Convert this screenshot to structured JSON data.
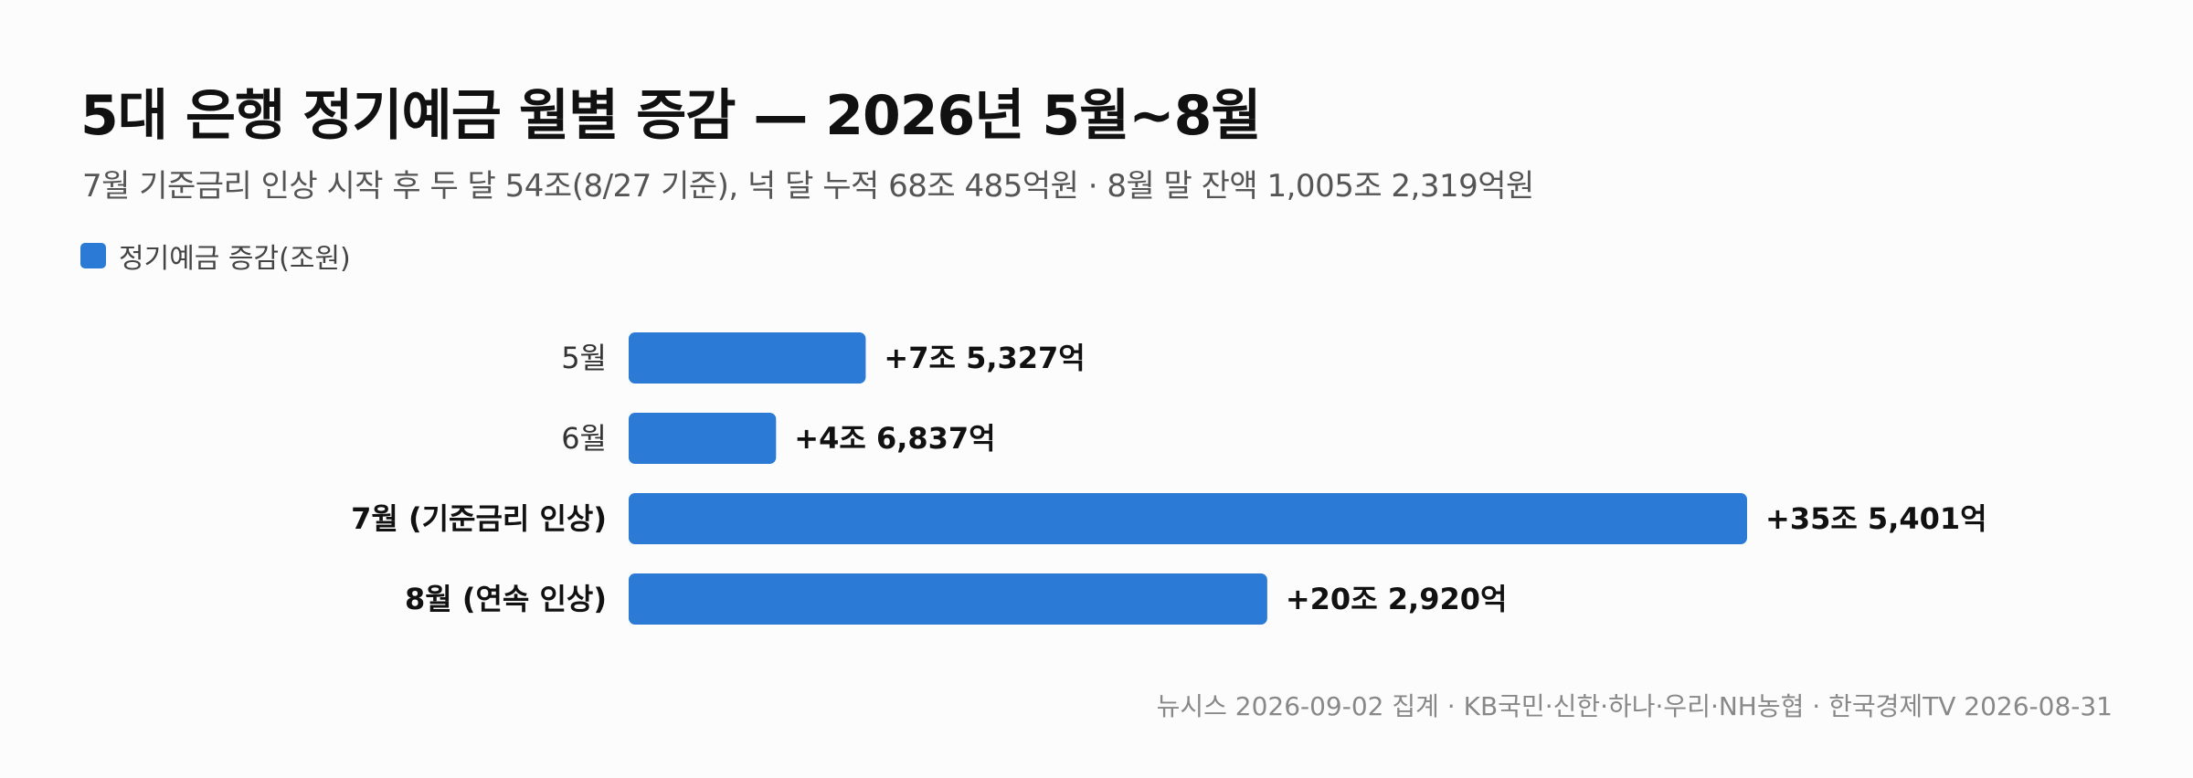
{
  "header": {
    "title": "5대 은행 정기예금 월별 증감 — 2026년 5월~8월",
    "subtitle": "7월 기준금리 인상 시작 후 두 달 54조(8/27 기준), 넉 달 누적 68조 485억원 · 8월 말 잔액 1,005조 2,319억원"
  },
  "legend": {
    "label": "정기예금 증감(조원)",
    "position": "top-left"
  },
  "colors": {
    "bar": "#2b7ad6",
    "category_label": "#333333",
    "category_label_emphasis": "#111111",
    "value_label": "#111111"
  },
  "chart_data": {
    "type": "bar",
    "orientation": "horizontal",
    "categories": [
      "5월",
      "6월",
      "7월 (기준금리 인상)",
      "8월 (연속 인상)"
    ],
    "emphasis": [
      false,
      false,
      true,
      true
    ],
    "values": [
      7.5327,
      4.6837,
      35.5401,
      20.292
    ],
    "value_labels": [
      "+7조 5,327억",
      "+4조 6,837억",
      "+35조 5,401억",
      "+20조 2,920억"
    ],
    "series": [
      {
        "name": "정기예금 증감(조원)",
        "values": [
          7.5327,
          4.6837,
          35.5401,
          20.292
        ]
      }
    ],
    "unit": "조원",
    "xlim": [
      0,
      35.5401
    ],
    "grid": false,
    "title": "5대 은행 정기예금 월별 증감 — 2026년 5월~8월",
    "xlabel": "",
    "ylabel": ""
  },
  "footer": {
    "source": "뉴시스 2026-09-02 집계 · KB국민·신한·하나·우리·NH농협 · 한국경제TV 2026-08-31"
  }
}
